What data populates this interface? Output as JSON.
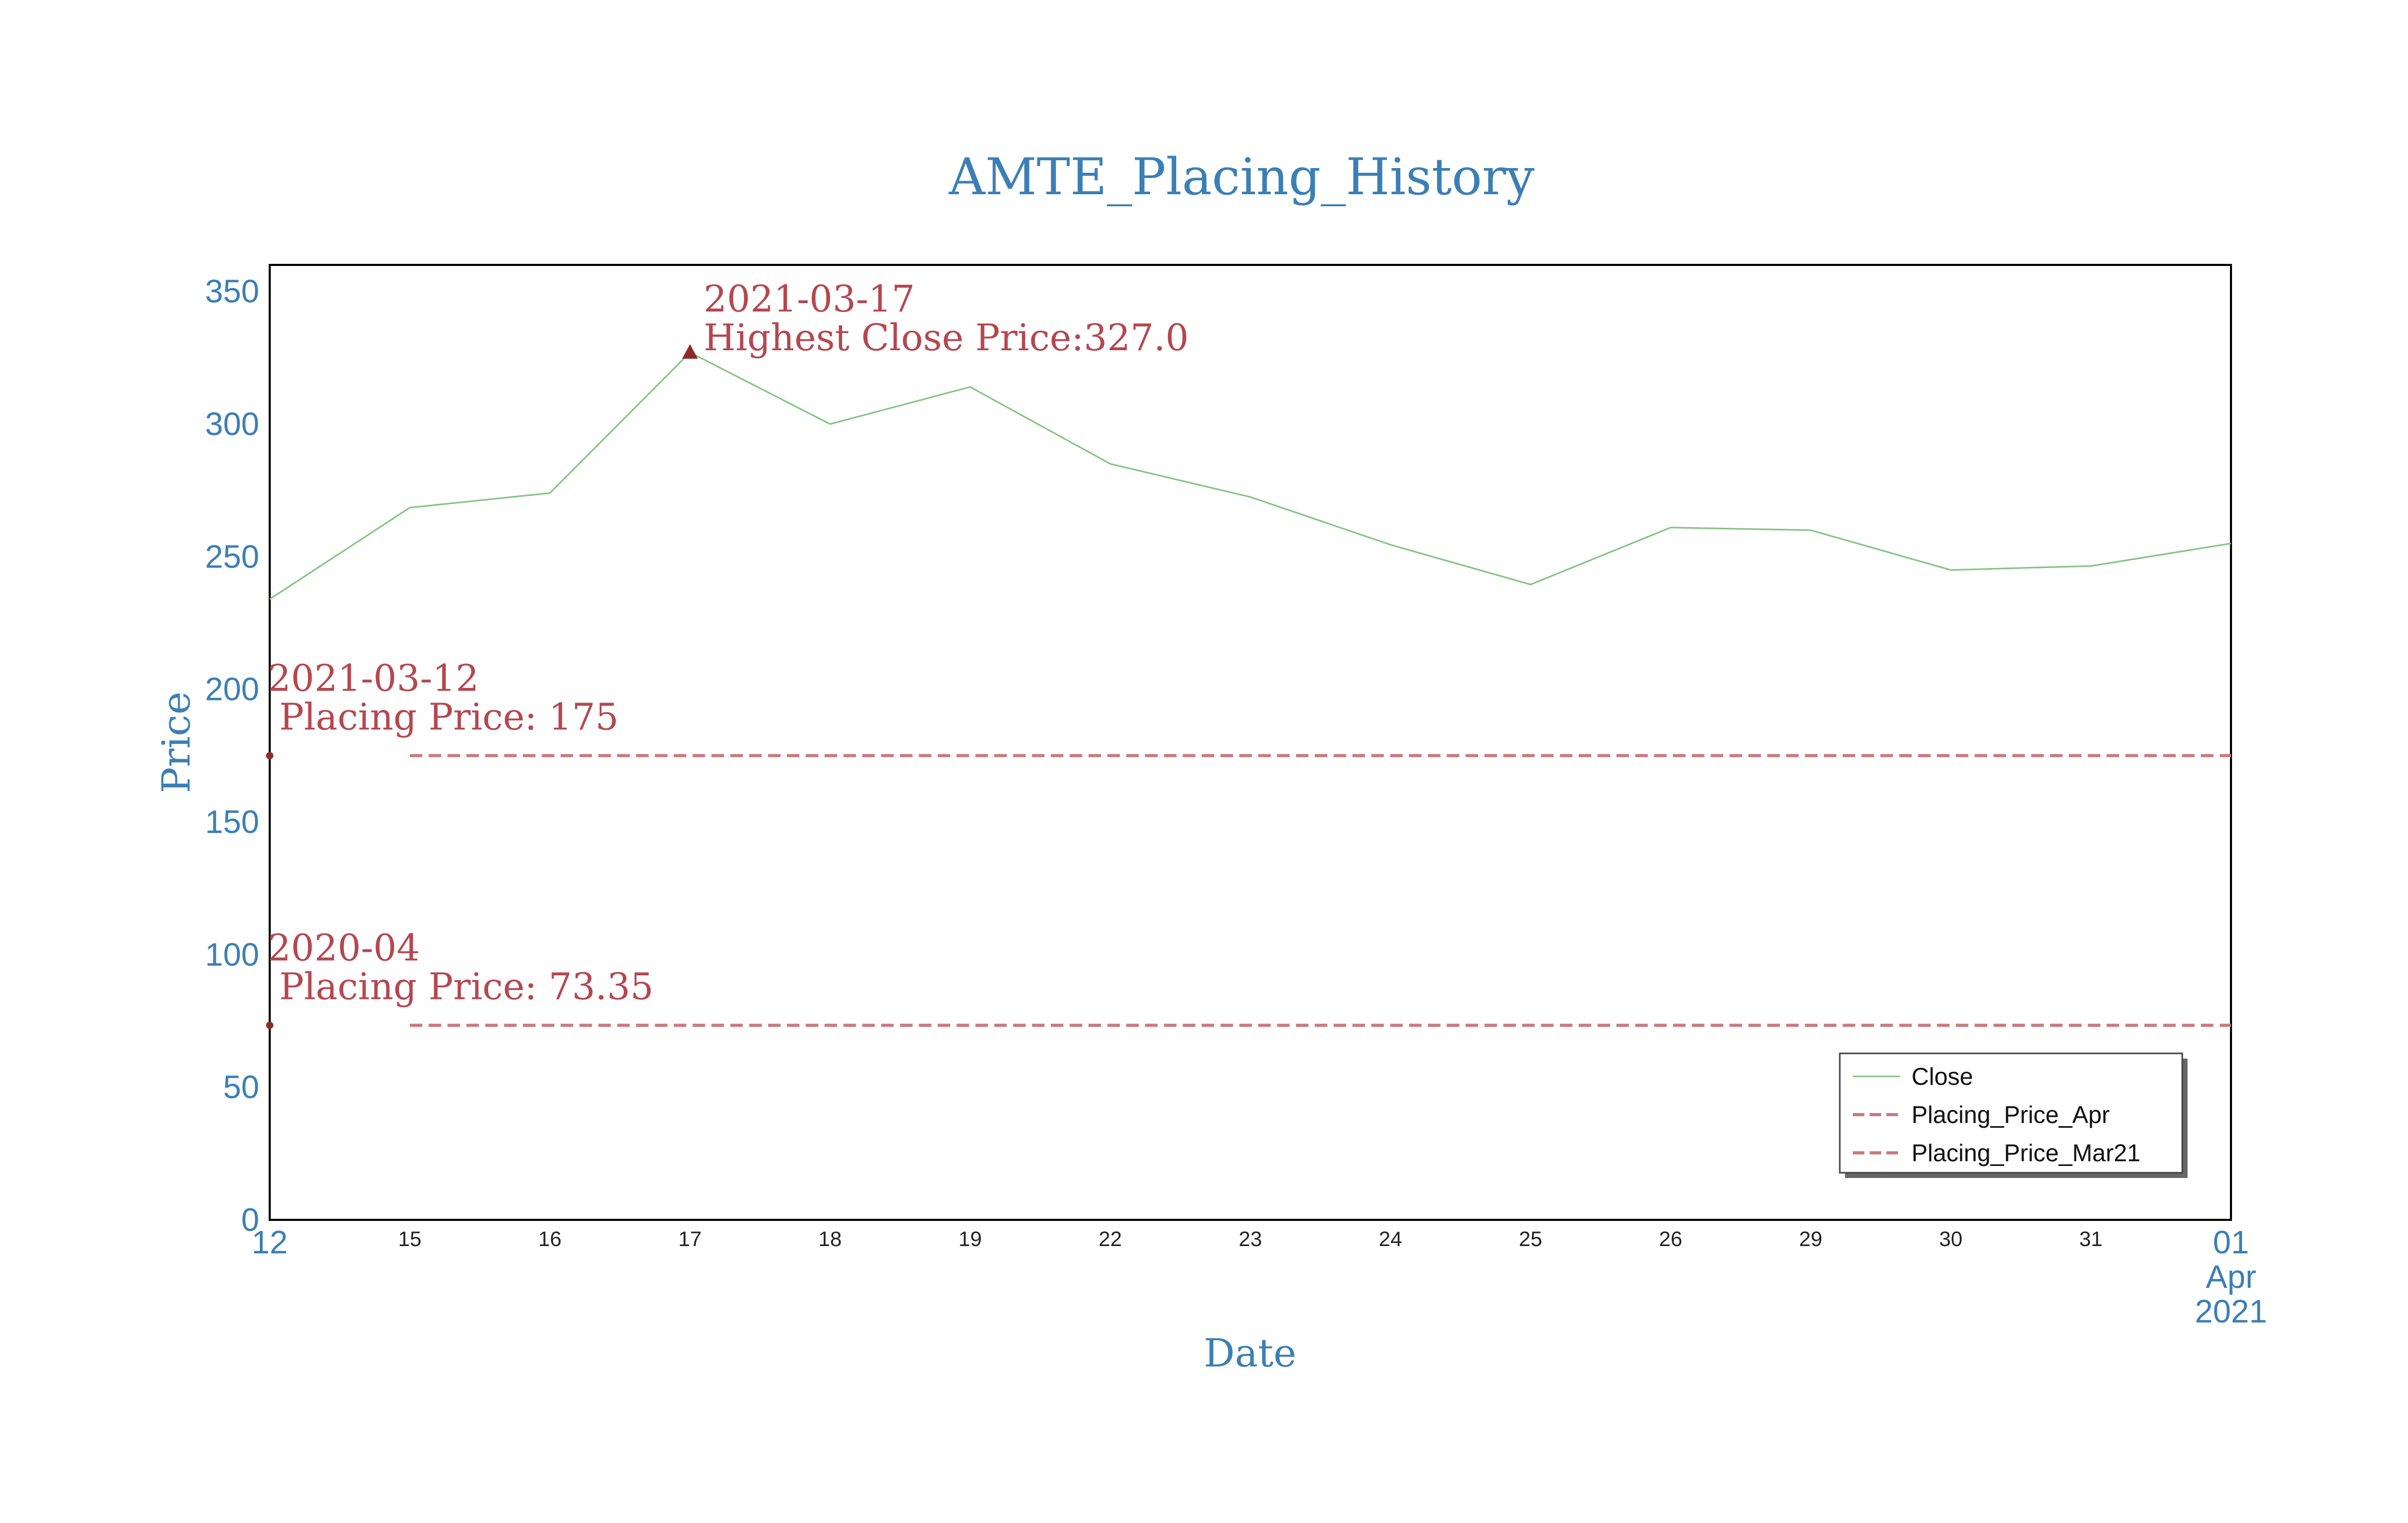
{
  "colors": {
    "accent": "#3b7fb6",
    "close_line": "#85c285",
    "placing_line": "#c97a7e",
    "annotation": "#b5474f",
    "marker": "#8b2c2c",
    "tick_dark": "#222222",
    "frame": "#000000"
  },
  "chart_data": {
    "type": "line",
    "title": "AMTE_Placing_History",
    "xlabel": "Date",
    "ylabel": "Price",
    "ylim": [
      0,
      360
    ],
    "yticks": [
      0,
      50,
      100,
      150,
      200,
      250,
      300,
      350
    ],
    "grid": false,
    "legend_placement": "bottom-right",
    "x": [
      "2021-03-12",
      "2021-03-15",
      "2021-03-16",
      "2021-03-17",
      "2021-03-18",
      "2021-03-19",
      "2021-03-22",
      "2021-03-23",
      "2021-03-24",
      "2021-03-25",
      "2021-03-26",
      "2021-03-29",
      "2021-03-30",
      "2021-03-31",
      "2021-04-01"
    ],
    "xticks": [
      {
        "label": "12",
        "big": true
      },
      {
        "label": "15"
      },
      {
        "label": "16"
      },
      {
        "label": "17"
      },
      {
        "label": "18"
      },
      {
        "label": "19"
      },
      {
        "label": "22"
      },
      {
        "label": "23"
      },
      {
        "label": "24"
      },
      {
        "label": "25"
      },
      {
        "label": "26"
      },
      {
        "label": "29"
      },
      {
        "label": "30"
      },
      {
        "label": "31"
      },
      {
        "label": "01",
        "big": true,
        "sub1": "Apr",
        "sub2": "2021"
      }
    ],
    "series": [
      {
        "name": "Close",
        "style": "solid",
        "values": [
          234,
          268.5,
          274,
          327,
          300,
          314,
          285,
          272.5,
          254.5,
          239.5,
          261,
          260,
          245,
          246.5,
          255
        ]
      },
      {
        "name": "Placing_Price_Apr",
        "style": "dashed",
        "values": [
          null,
          73.35,
          73.35,
          73.35,
          73.35,
          73.35,
          73.35,
          73.35,
          73.35,
          73.35,
          73.35,
          73.35,
          73.35,
          73.35,
          73.35
        ]
      },
      {
        "name": "Placing_Price_Mar21",
        "style": "dashed",
        "values": [
          null,
          175,
          175,
          175,
          175,
          175,
          175,
          175,
          175,
          175,
          175,
          175,
          175,
          175,
          175
        ]
      }
    ],
    "markers": [
      {
        "x": "2021-03-17",
        "y": 327,
        "symbol": "triangle"
      },
      {
        "x": "2021-03-12",
        "y": 175,
        "symbol": "dot"
      },
      {
        "x": "2021-03-12",
        "y": 73.35,
        "symbol": "dot"
      }
    ],
    "annotations": [
      {
        "x": "2021-03-17",
        "y": 327,
        "line1": "2021-03-17",
        "line2": "Highest Close Price:327.0"
      },
      {
        "x": "2021-03-12",
        "y": 175,
        "line1": "2021-03-12",
        "line2": " Placing Price: 175"
      },
      {
        "x": "2021-03-12",
        "y": 73.35,
        "line1": "2020-04",
        "line2": " Placing Price: 73.35"
      }
    ]
  }
}
